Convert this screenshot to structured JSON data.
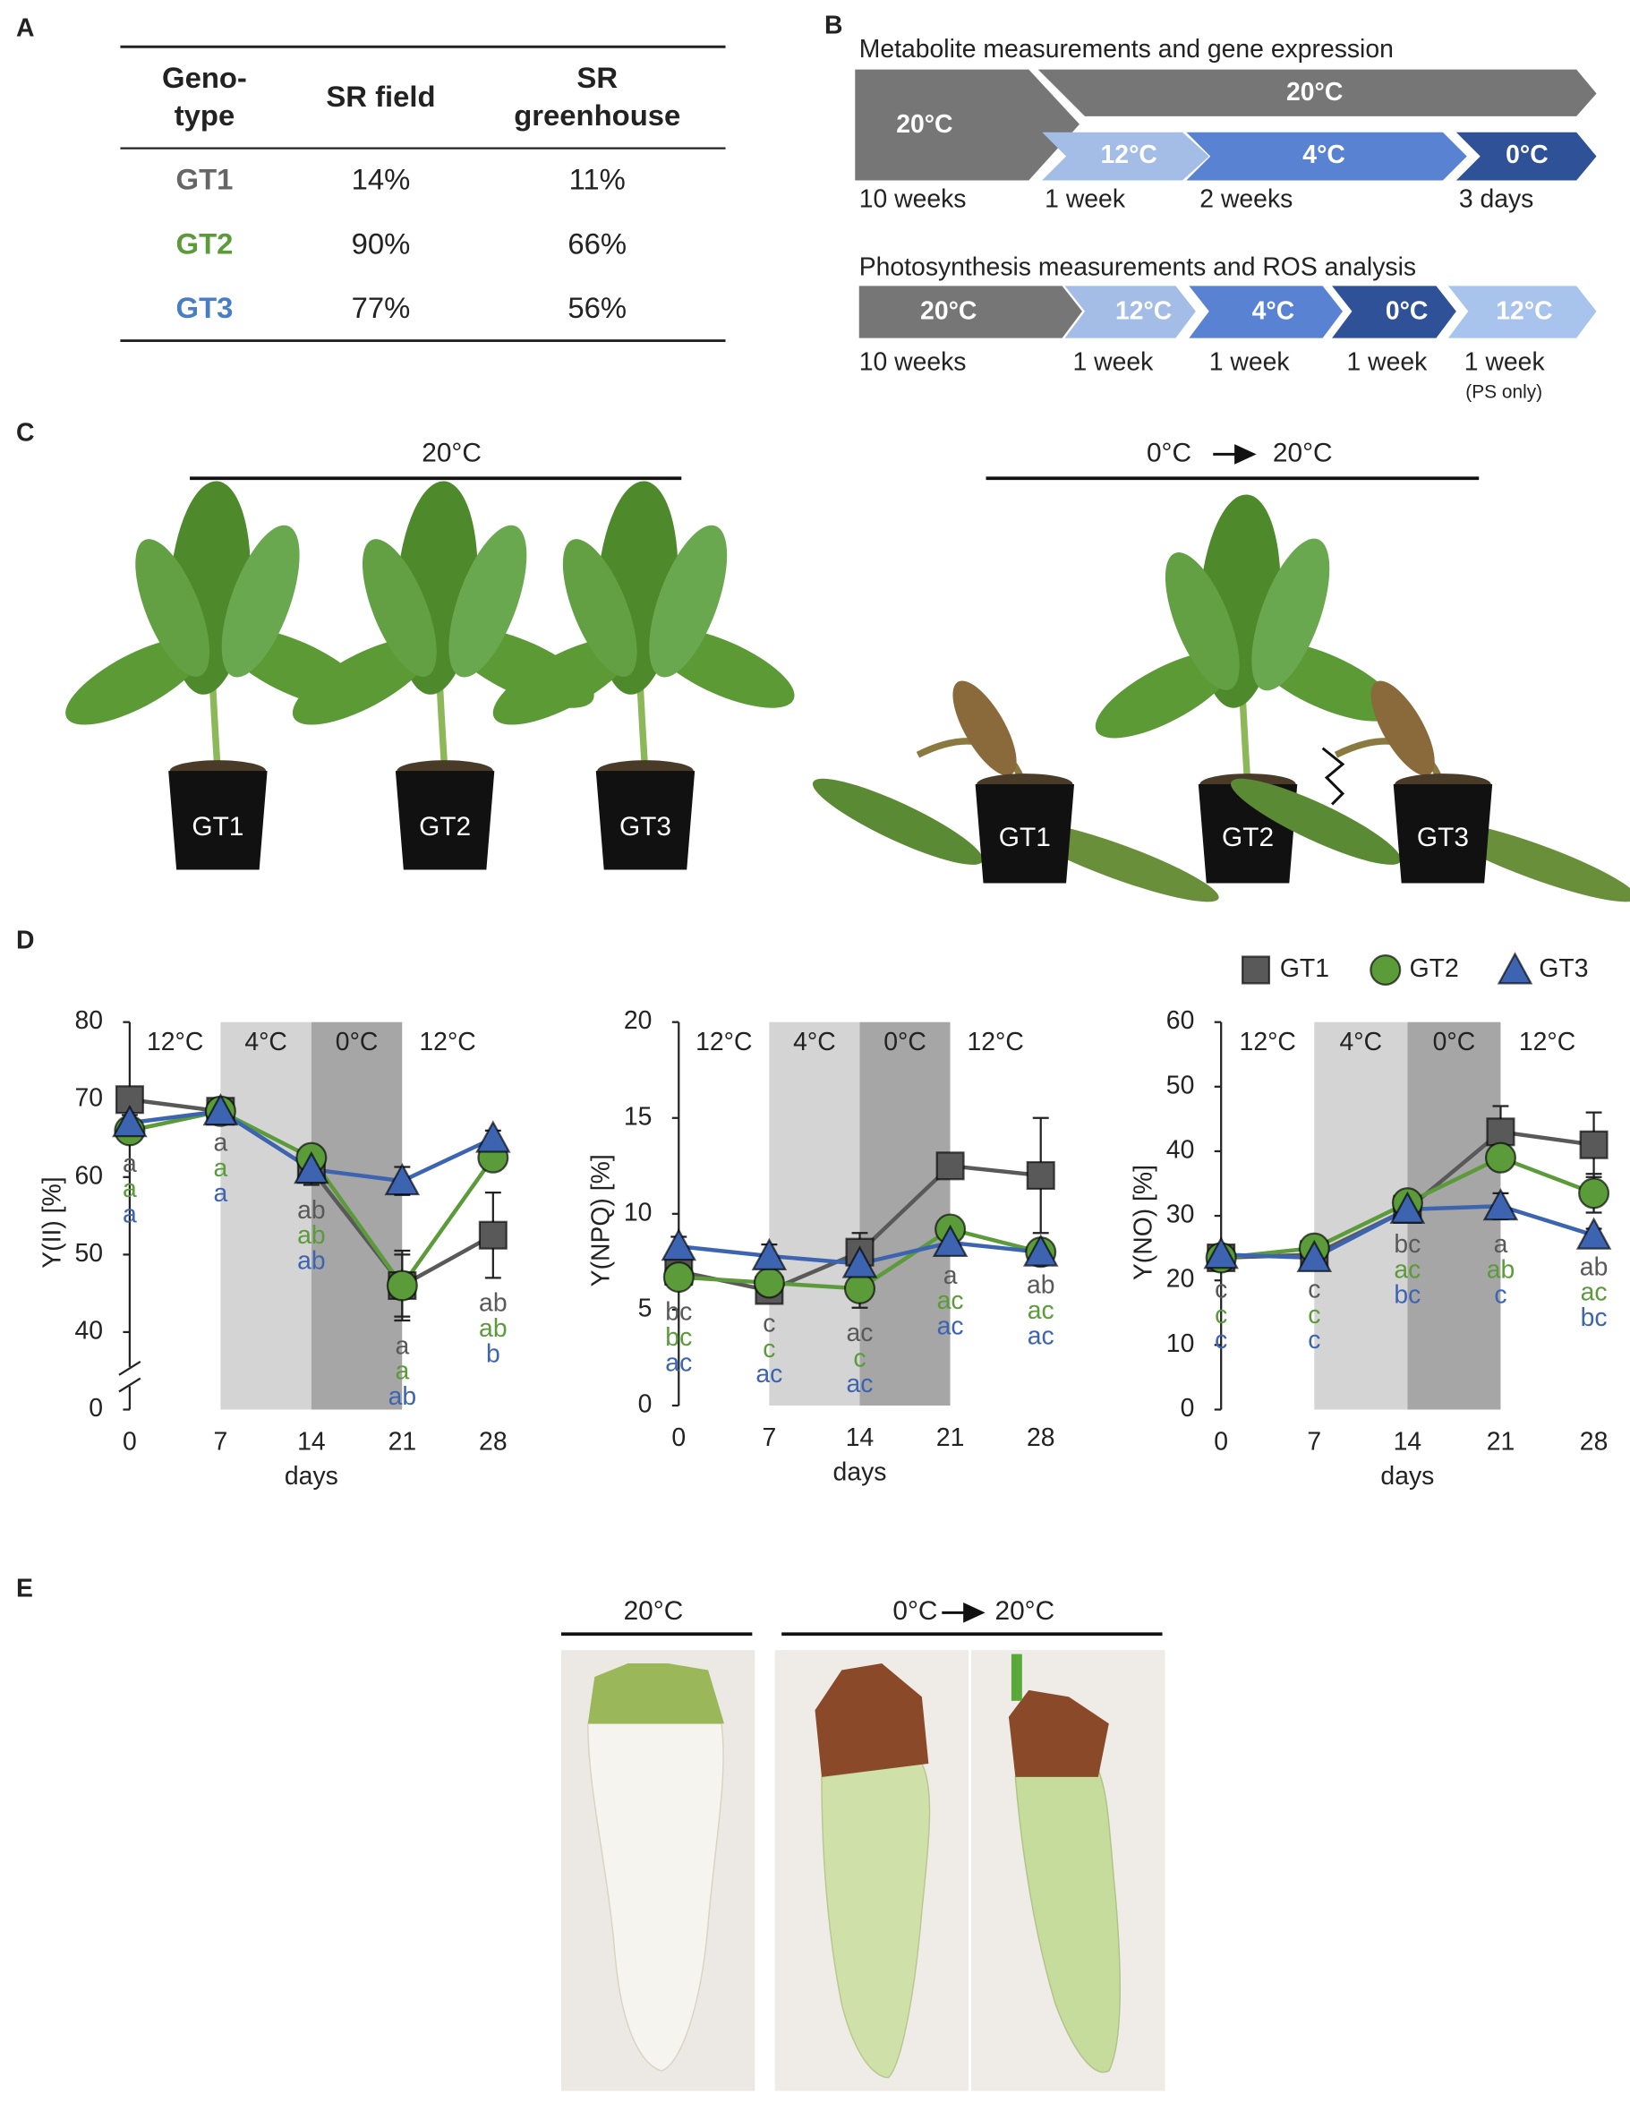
{
  "panel_labels": [
    "A",
    "B",
    "C",
    "D",
    "E"
  ],
  "table": {
    "header": [
      [
        "Geno-",
        "type"
      ],
      [
        "SR field"
      ],
      [
        "SR",
        "greenhouse"
      ]
    ],
    "rows": [
      [
        "GT1",
        "14%",
        "11%"
      ],
      [
        "GT2",
        "90%",
        "66%"
      ],
      [
        "GT3",
        "77%",
        "56%"
      ]
    ],
    "row_colors": [
      "#666666",
      "#5b9b3a",
      "#4a7ec2"
    ]
  },
  "timelines": [
    {
      "title": "Metabolite measurements and gene expression",
      "segments": [
        "20°C",
        "20°C",
        "12°C",
        "4°C",
        "0°C"
      ],
      "durations": [
        "10 weeks",
        "1 week",
        "2 weeks",
        "3 days"
      ]
    },
    {
      "title": "Photosynthesis measurements and ROS analysis",
      "segments": [
        "20°C",
        "12°C",
        "4°C",
        "0°C",
        "12°C"
      ],
      "durations": [
        "10 weeks",
        "1 week",
        "1 week",
        "1 week",
        "1 week"
      ],
      "note": "(PS only)"
    }
  ],
  "plants": {
    "control": "20°C",
    "treatment_from": "0°C",
    "treatment_to": "20°C",
    "pots": [
      "GT1",
      "GT2",
      "GT3",
      "GT1",
      "GT2",
      "GT3"
    ]
  },
  "roots": {
    "control": "20°C",
    "treatment_from": "0°C",
    "treatment_to": "20°C"
  },
  "chart_data": [
    {
      "type": "line",
      "y_label": "Y(II) [%]",
      "x_label": "days",
      "x": [
        0,
        7,
        14,
        21,
        28
      ],
      "xlim": [
        0,
        28
      ],
      "xticks": [
        0,
        7,
        14,
        21,
        28
      ],
      "ylim": [
        0,
        80
      ],
      "yticks": [
        0,
        40,
        50,
        60,
        70,
        80
      ],
      "broken_axis": true,
      "phases": [
        {
          "label": "12°C",
          "from": 0,
          "to": 7,
          "color": "#ffffff"
        },
        {
          "label": "4°C",
          "from": 7,
          "to": 14,
          "color": "#d4d4d4"
        },
        {
          "label": "0°C",
          "from": 14,
          "to": 21,
          "color": "#a6a6a6"
        },
        {
          "label": "12°C",
          "from": 21,
          "to": 28,
          "color": "#ffffff"
        }
      ],
      "series": [
        {
          "color": "#595959",
          "marker": "square",
          "values": [
            70,
            68.5,
            61,
            46,
            52.5
          ],
          "errors": [
            1,
            0.8,
            2,
            4.5,
            5.5
          ],
          "letters": [
            "a",
            "a",
            "ab",
            "a",
            "ab"
          ]
        },
        {
          "color": "#5b9b3a",
          "marker": "circle",
          "values": [
            66,
            68.5,
            62.5,
            46,
            62.5
          ],
          "errors": [
            1,
            0.8,
            1.5,
            4,
            1.5
          ],
          "letters": [
            "a",
            "a",
            "ab",
            "a",
            "ab"
          ]
        },
        {
          "color": "#3d64b0",
          "marker": "triangle",
          "values": [
            67,
            68.5,
            61,
            59.5,
            65
          ],
          "errors": [
            1,
            0.8,
            1.5,
            1.8,
            1
          ],
          "letters": [
            "a",
            "a",
            "ab",
            "ab",
            "b"
          ]
        }
      ]
    },
    {
      "type": "line",
      "y_label": "Y(NPQ) [%]",
      "x_label": "days",
      "x": [
        0,
        7,
        14,
        21,
        28
      ],
      "xlim": [
        0,
        28
      ],
      "xticks": [
        0,
        7,
        14,
        21,
        28
      ],
      "ylim": [
        0,
        20
      ],
      "yticks": [
        0,
        5,
        10,
        15,
        20
      ],
      "phases": [
        {
          "label": "12°C",
          "from": 0,
          "to": 7,
          "color": "#ffffff"
        },
        {
          "label": "4°C",
          "from": 7,
          "to": 14,
          "color": "#d4d4d4"
        },
        {
          "label": "0°C",
          "from": 14,
          "to": 21,
          "color": "#a6a6a6"
        },
        {
          "label": "12°C",
          "from": 21,
          "to": 28,
          "color": "#ffffff"
        }
      ],
      "series": [
        {
          "color": "#595959",
          "marker": "square",
          "values": [
            7,
            6,
            8,
            12.5,
            12
          ],
          "errors": [
            0.5,
            0.4,
            1,
            0.5,
            3
          ],
          "letters": [
            "bc",
            "c",
            "ac",
            "a",
            "ab"
          ]
        },
        {
          "color": "#5b9b3a",
          "marker": "circle",
          "values": [
            6.7,
            6.4,
            6.1,
            9.2,
            8
          ],
          "errors": [
            0.5,
            0.4,
            1,
            0.4,
            0.4
          ],
          "letters": [
            "bc",
            "c",
            "c",
            "ac",
            "ac"
          ]
        },
        {
          "color": "#3d64b0",
          "marker": "triangle",
          "values": [
            8.3,
            7.8,
            7.4,
            8.5,
            8
          ],
          "errors": [
            0.5,
            0.6,
            0.6,
            0.4,
            0.4
          ],
          "letters": [
            "ac",
            "ac",
            "ac",
            "ac",
            "ac"
          ]
        }
      ]
    },
    {
      "type": "line",
      "y_label": "Y(NO) [%]",
      "x_label": "days",
      "x": [
        0,
        7,
        14,
        21,
        28
      ],
      "xlim": [
        0,
        28
      ],
      "xticks": [
        0,
        7,
        14,
        21,
        28
      ],
      "ylim": [
        0,
        60
      ],
      "yticks": [
        0,
        10,
        20,
        30,
        40,
        50,
        60
      ],
      "legend": "top-right",
      "phases": [
        {
          "label": "12°C",
          "from": 0,
          "to": 7,
          "color": "#ffffff"
        },
        {
          "label": "4°C",
          "from": 7,
          "to": 14,
          "color": "#d4d4d4"
        },
        {
          "label": "0°C",
          "from": 14,
          "to": 21,
          "color": "#a6a6a6"
        },
        {
          "label": "12°C",
          "from": 21,
          "to": 28,
          "color": "#ffffff"
        }
      ],
      "series": [
        {
          "name": "GT1",
          "color": "#595959",
          "marker": "square",
          "values": [
            23.5,
            24,
            31,
            43,
            41
          ],
          "errors": [
            1,
            1,
            1.5,
            4,
            5
          ],
          "letters": [
            "c",
            "c",
            "bc",
            "a",
            "ab"
          ]
        },
        {
          "name": "GT2",
          "color": "#5b9b3a",
          "marker": "circle",
          "values": [
            23.5,
            25,
            32,
            39,
            33.5
          ],
          "errors": [
            1,
            1,
            1.5,
            1.5,
            3
          ],
          "letters": [
            "c",
            "c",
            "ac",
            "ab",
            "ac"
          ]
        },
        {
          "name": "GT3",
          "color": "#3d64b0",
          "marker": "triangle",
          "values": [
            24,
            23.5,
            31,
            31.5,
            27
          ],
          "errors": [
            1,
            1,
            1.5,
            2,
            1
          ],
          "letters": [
            "c",
            "c",
            "bc",
            "c",
            "bc"
          ]
        }
      ]
    }
  ]
}
